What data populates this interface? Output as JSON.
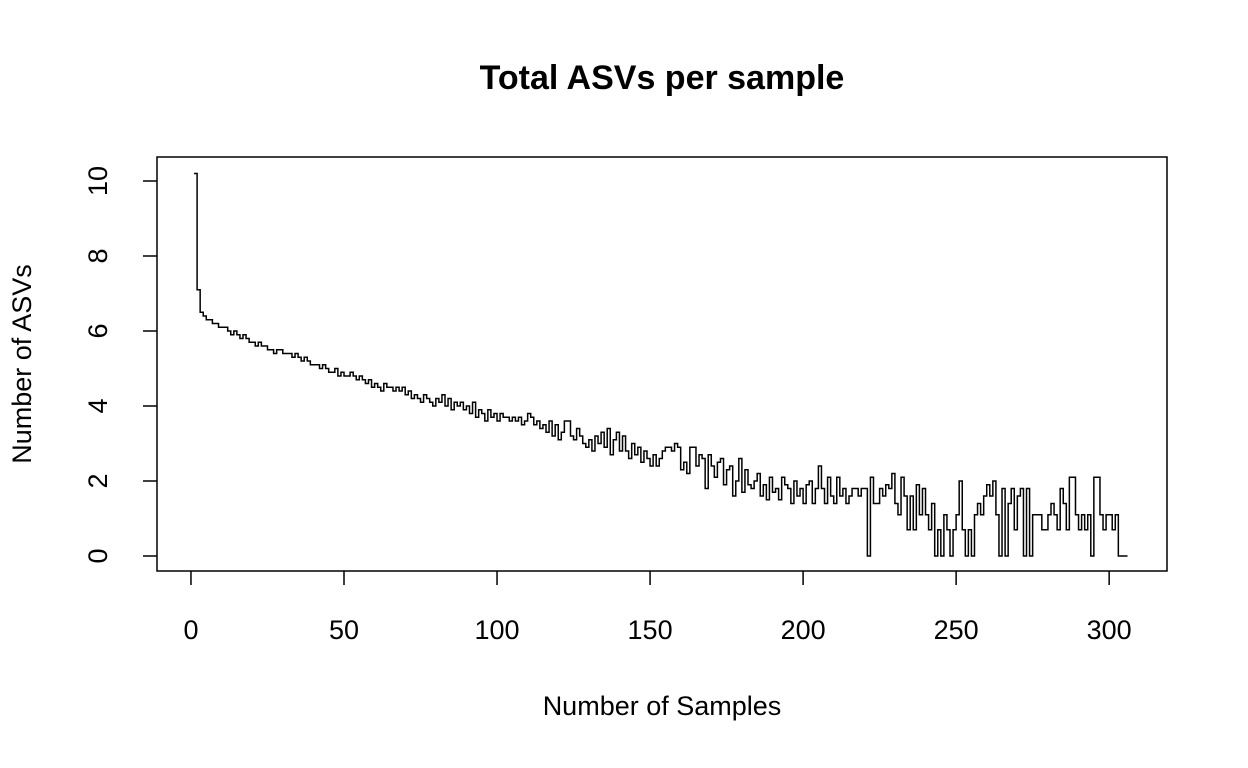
{
  "chart_data": {
    "type": "step",
    "title": "Total ASVs per sample",
    "x_label": "Number of Samples",
    "y_label": "Number of ASVs",
    "color": "#000000",
    "x": [
      1,
      2,
      3,
      4,
      5,
      6,
      7,
      8,
      9,
      10,
      11,
      12,
      13,
      14,
      15,
      16,
      17,
      18,
      19,
      20,
      21,
      22,
      23,
      24,
      25,
      26,
      27,
      28,
      29,
      30,
      31,
      32,
      33,
      34,
      35,
      36,
      37,
      38,
      39,
      40,
      41,
      42,
      43,
      44,
      45,
      46,
      47,
      48,
      49,
      50,
      51,
      52,
      53,
      54,
      55,
      56,
      57,
      58,
      59,
      60,
      61,
      62,
      63,
      64,
      65,
      66,
      67,
      68,
      69,
      70,
      71,
      72,
      73,
      74,
      75,
      76,
      77,
      78,
      79,
      80,
      81,
      82,
      83,
      84,
      85,
      86,
      87,
      88,
      89,
      90,
      91,
      92,
      93,
      94,
      95,
      96,
      97,
      98,
      99,
      100,
      101,
      102,
      103,
      104,
      105,
      106,
      107,
      108,
      109,
      110,
      111,
      112,
      113,
      114,
      115,
      116,
      117,
      118,
      119,
      120,
      121,
      122,
      123,
      124,
      125,
      126,
      127,
      128,
      129,
      130,
      131,
      132,
      133,
      134,
      135,
      136,
      137,
      138,
      139,
      140,
      141,
      142,
      143,
      144,
      145,
      146,
      147,
      148,
      149,
      150,
      151,
      152,
      153,
      154,
      155,
      156,
      157,
      158,
      159,
      160,
      161,
      162,
      163,
      164,
      165,
      166,
      167,
      168,
      169,
      170,
      171,
      172,
      173,
      174,
      175,
      176,
      177,
      178,
      179,
      180,
      181,
      182,
      183,
      184,
      185,
      186,
      187,
      188,
      189,
      190,
      191,
      192,
      193,
      194,
      195,
      196,
      197,
      198,
      199,
      200,
      201,
      202,
      203,
      204,
      205,
      206,
      207,
      208,
      209,
      210,
      211,
      212,
      213,
      214,
      215,
      216,
      217,
      218,
      219,
      220,
      221,
      222,
      223,
      224,
      225,
      226,
      227,
      228,
      229,
      230,
      231,
      232,
      233,
      234,
      235,
      236,
      237,
      238,
      239,
      240,
      241,
      242,
      243,
      244,
      245,
      246,
      247,
      248,
      249,
      250,
      251,
      252,
      253,
      254,
      255,
      256,
      257,
      258,
      259,
      260,
      261,
      262,
      263,
      264,
      265,
      266,
      267,
      268,
      269,
      270,
      271,
      272,
      273,
      274,
      275,
      276,
      277,
      278,
      279,
      280,
      281,
      282,
      283,
      284,
      285,
      286,
      287,
      288,
      289,
      290,
      291,
      292,
      293,
      294,
      295,
      296,
      297,
      298,
      299,
      300,
      301,
      302,
      303,
      304,
      305,
      306
    ],
    "values": [
      10.2,
      7.1,
      6.5,
      6.4,
      6.3,
      6.3,
      6.2,
      6.2,
      6.1,
      6.1,
      6.1,
      6.0,
      5.9,
      6.0,
      5.9,
      5.8,
      5.9,
      5.8,
      5.7,
      5.7,
      5.6,
      5.7,
      5.6,
      5.6,
      5.5,
      5.5,
      5.4,
      5.5,
      5.5,
      5.4,
      5.4,
      5.4,
      5.3,
      5.4,
      5.3,
      5.2,
      5.3,
      5.2,
      5.1,
      5.1,
      5.1,
      5.0,
      5.1,
      5.0,
      4.9,
      4.9,
      5.0,
      4.8,
      4.9,
      4.8,
      4.8,
      4.9,
      4.8,
      4.7,
      4.8,
      4.7,
      4.6,
      4.7,
      4.5,
      4.6,
      4.5,
      4.4,
      4.6,
      4.5,
      4.5,
      4.4,
      4.5,
      4.4,
      4.5,
      4.3,
      4.4,
      4.2,
      4.3,
      4.2,
      4.1,
      4.3,
      4.2,
      4.1,
      4.0,
      4.2,
      4.1,
      4.3,
      4.0,
      4.2,
      3.9,
      4.1,
      4.0,
      4.1,
      3.9,
      4.0,
      3.8,
      4.1,
      3.7,
      3.9,
      3.8,
      3.6,
      3.9,
      3.7,
      3.8,
      3.6,
      3.8,
      3.7,
      3.7,
      3.6,
      3.7,
      3.6,
      3.7,
      3.5,
      3.6,
      3.8,
      3.7,
      3.5,
      3.6,
      3.4,
      3.5,
      3.3,
      3.6,
      3.2,
      3.5,
      3.1,
      3.3,
      3.6,
      3.6,
      3.2,
      3.1,
      3.4,
      3.2,
      3.0,
      2.9,
      3.1,
      2.8,
      3.2,
      3.0,
      3.3,
      2.9,
      3.4,
      2.7,
      3.1,
      3.3,
      2.8,
      3.2,
      2.8,
      2.6,
      3.0,
      2.7,
      2.9,
      2.5,
      2.8,
      2.6,
      2.4,
      2.7,
      2.4,
      2.6,
      2.8,
      2.9,
      2.9,
      2.8,
      3.0,
      2.9,
      2.3,
      2.5,
      2.2,
      2.9,
      2.9,
      2.4,
      2.7,
      2.6,
      1.8,
      2.7,
      2.4,
      2.1,
      2.5,
      2.6,
      1.9,
      2.3,
      2.4,
      1.6,
      2.0,
      2.6,
      1.7,
      2.3,
      1.9,
      1.8,
      2.0,
      2.2,
      1.6,
      1.9,
      1.5,
      2.1,
      1.7,
      1.8,
      1.5,
      2.1,
      1.9,
      1.8,
      1.4,
      2.0,
      1.6,
      1.8,
      1.4,
      1.9,
      2.0,
      1.4,
      1.8,
      2.4,
      1.8,
      1.4,
      2.1,
      1.6,
      1.4,
      2.1,
      1.6,
      1.8,
      1.4,
      1.6,
      1.8,
      1.8,
      1.6,
      1.8,
      1.8,
      0,
      2.1,
      1.4,
      1.4,
      1.8,
      1.6,
      1.9,
      1.8,
      2.2,
      1.4,
      1.1,
      2.1,
      1.6,
      0.7,
      1.6,
      0.7,
      1.9,
      1.1,
      1.8,
      1.1,
      0.7,
      1.4,
      0,
      0.7,
      0,
      1.1,
      0.7,
      0,
      0.7,
      1.1,
      2.0,
      0.7,
      0,
      0.7,
      0,
      1.1,
      1.4,
      1.1,
      1.6,
      1.9,
      1.6,
      2.0,
      1.1,
      0,
      1.8,
      0,
      1.4,
      1.8,
      0.7,
      1.6,
      1.8,
      0,
      1.8,
      0,
      1.1,
      1.1,
      1.1,
      0.7,
      0.7,
      1.1,
      1.4,
      1.1,
      0.7,
      1.8,
      1.4,
      0.7,
      2.1,
      2.1,
      1.1,
      0.7,
      1.1,
      0.7,
      1.1,
      0,
      2.1,
      2.1,
      1.1,
      0.7,
      1.1,
      1.1,
      0.7,
      1.1,
      0,
      0,
      0,
      0
    ],
    "xlim": [
      -11.1,
      318.9
    ],
    "ylim": [
      -0.4,
      10.64
    ],
    "xticks": [
      0,
      50,
      100,
      150,
      200,
      250,
      300
    ],
    "yticks": [
      0,
      2,
      4,
      6,
      8,
      10
    ]
  }
}
